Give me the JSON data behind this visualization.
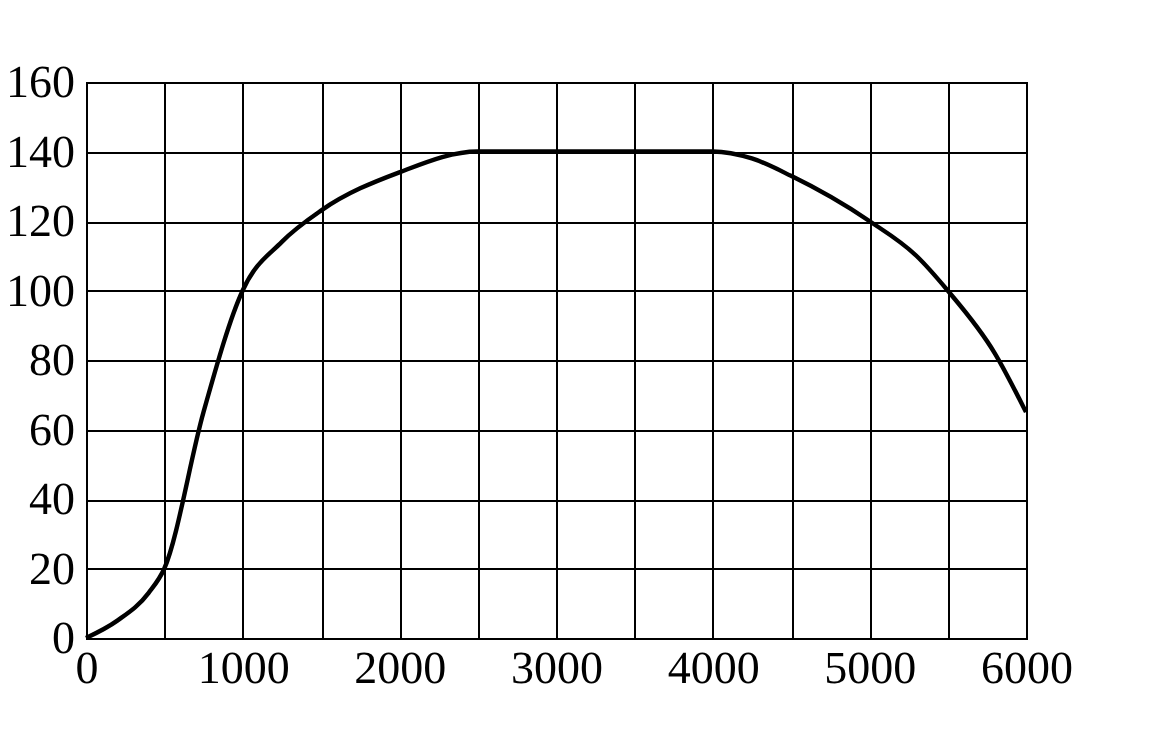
{
  "chart_data": {
    "type": "line",
    "x": [
      0,
      200,
      400,
      500,
      750,
      1000,
      1250,
      1500,
      2000,
      2500,
      3000,
      4000,
      4250,
      4500,
      5000,
      5300,
      5500,
      5800,
      6000
    ],
    "series": [
      {
        "color": "#000000",
        "values": [
          0,
          5,
          13,
          20,
          65,
          100,
          114,
          123,
          134,
          140,
          140,
          140,
          138,
          133,
          120,
          110,
          100,
          82,
          65
        ]
      }
    ],
    "xlim": [
      0,
      6000
    ],
    "ylim": [
      0,
      160
    ],
    "xticks": [
      0,
      {
        "value": 500,
        "label": null
      },
      1000,
      {
        "value": 1500,
        "label": null
      },
      2000,
      {
        "value": 2500,
        "label": null
      },
      3000,
      {
        "value": 3500,
        "label": null
      },
      4000,
      {
        "value": 4500,
        "label": null
      },
      5000,
      {
        "value": 5500,
        "label": null
      },
      6000
    ],
    "yticks": [
      0,
      20,
      40,
      60,
      80,
      100,
      120,
      140,
      160
    ],
    "grid": true,
    "marker": "none",
    "line_style": "solid"
  }
}
